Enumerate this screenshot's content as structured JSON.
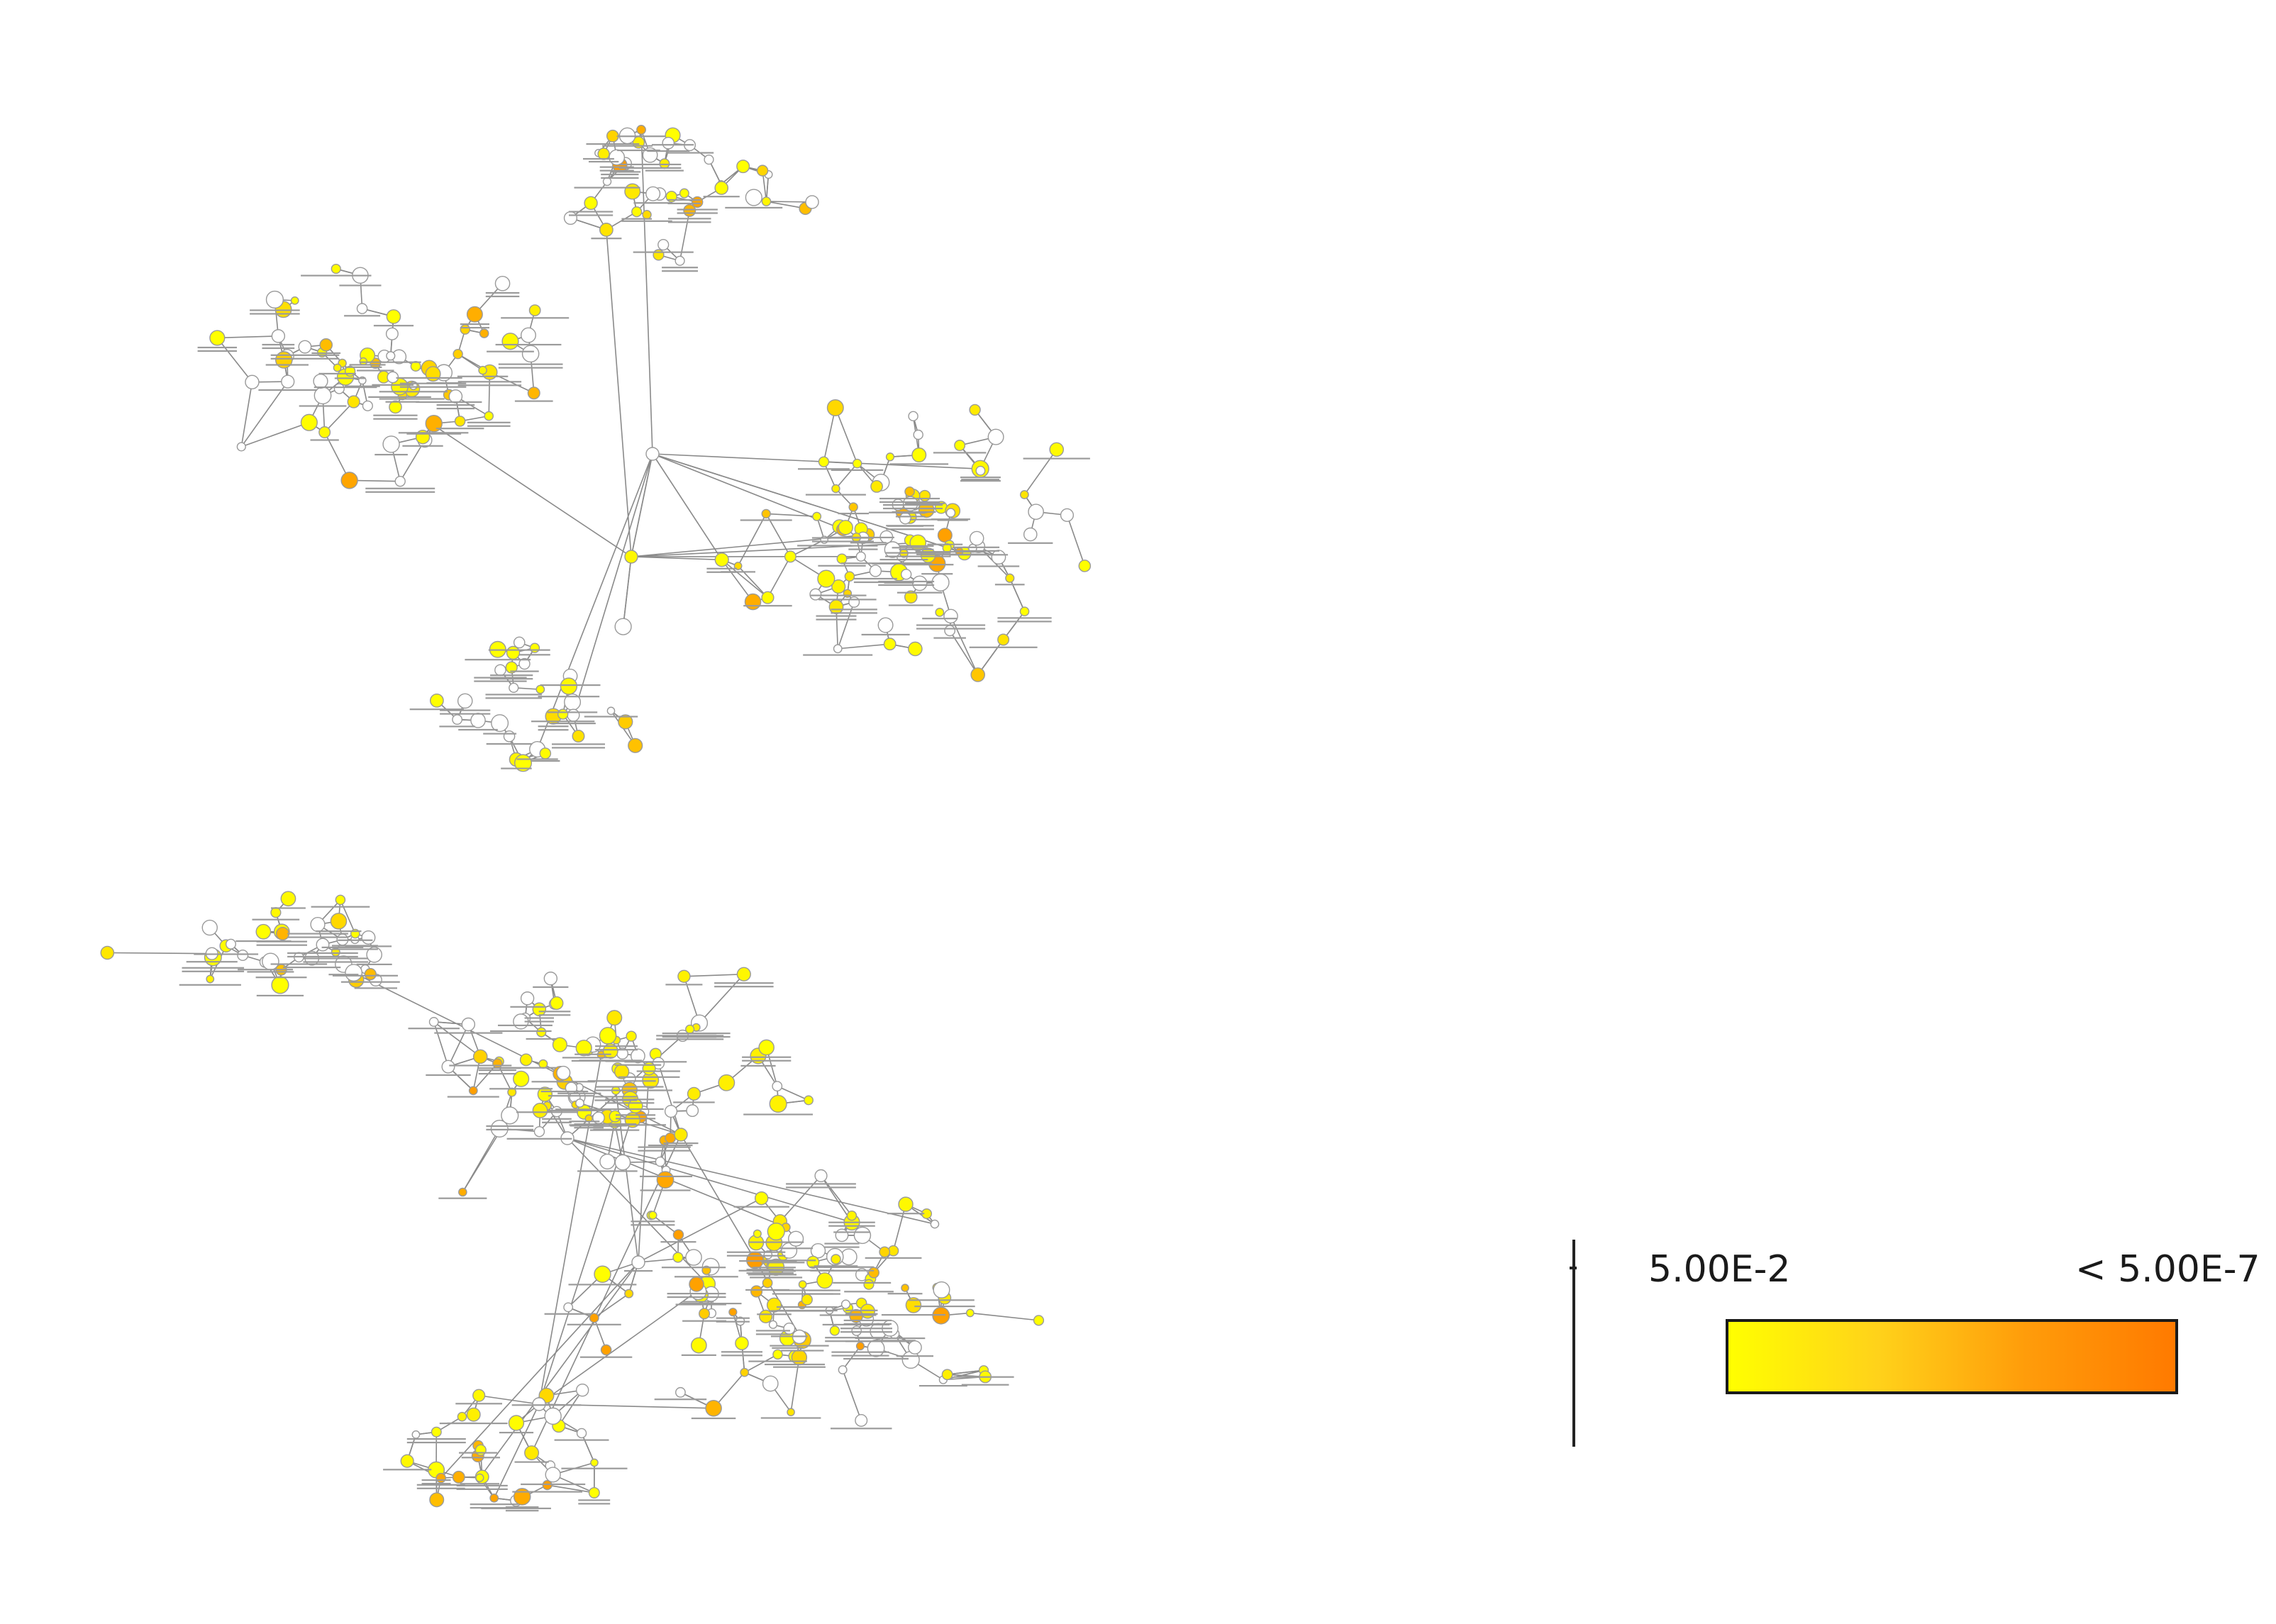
{
  "colors": {
    "background": "#ffffff",
    "edge": "#8a8a8a",
    "node_stroke": "#9a9a9a",
    "node_unsignificant": "#ffffff",
    "scale_low": "#ffff00",
    "scale_high": "#ff7a00"
  },
  "legend": {
    "min_label": "5.00E-2",
    "max_label": "< 5.00E-7",
    "gradient_stops": [
      "#ffff00",
      "#ffd21a",
      "#ff9c0a",
      "#ff7a00"
    ]
  },
  "network": {
    "node_label_placeholder": "GO:0000000 biological process term",
    "node_count_hint": 420
  }
}
